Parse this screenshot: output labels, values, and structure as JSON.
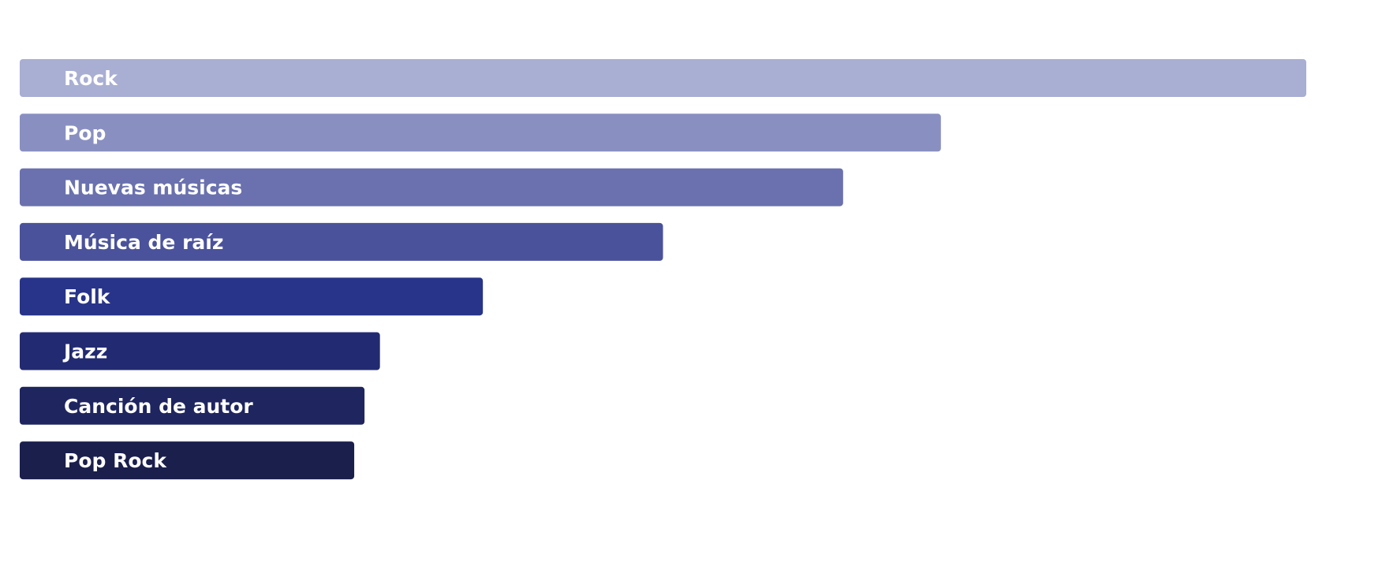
{
  "chart_data": {
    "type": "bar",
    "orientation": "horizontal",
    "title": "",
    "xlabel": "",
    "ylabel": "",
    "grid": false,
    "legend": "none",
    "categories": [
      "Rock",
      "Pop",
      "Nuevas músicas",
      "Música de raíz",
      "Folk",
      "Jazz",
      "Canción de autor",
      "Pop Rock"
    ],
    "values": [
      100,
      71.6,
      64.0,
      50.0,
      36.0,
      28.0,
      26.8,
      26.0
    ],
    "xlim": [
      0,
      100
    ],
    "colors": [
      "#a9aed3",
      "#8990c1",
      "#6a71ae",
      "#4a529b",
      "#283489",
      "#222b71",
      "#1e255f",
      "#1a1f4c"
    ]
  }
}
